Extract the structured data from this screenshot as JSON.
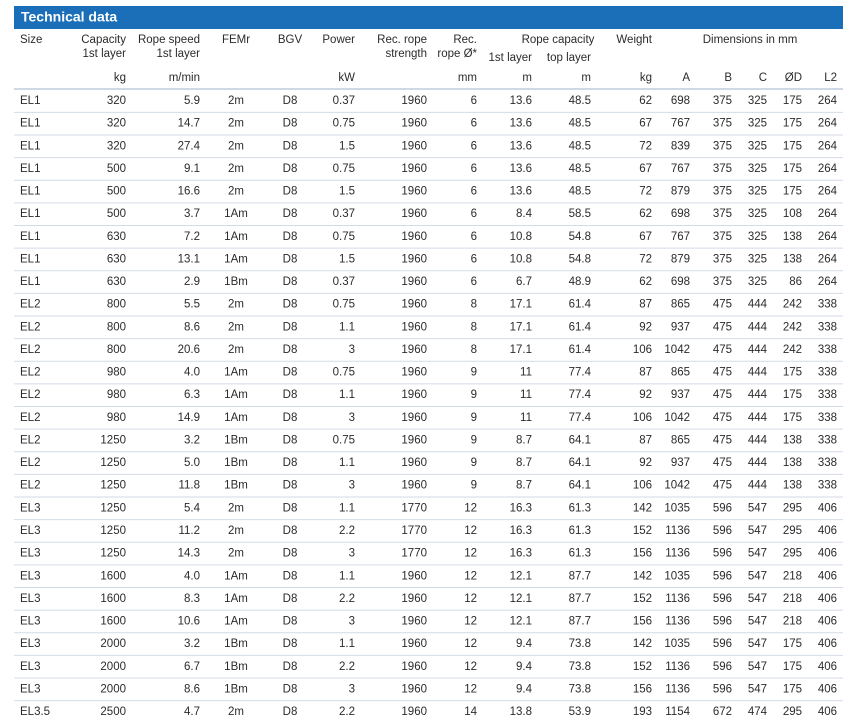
{
  "table": {
    "title": "Technical data",
    "group_headers": [
      "Rope capacity",
      "Dimensions in mm"
    ],
    "headers": [
      [
        "Size"
      ],
      [
        "Capacity",
        "1st layer"
      ],
      [
        "Rope speed",
        "1st layer"
      ],
      [
        "FEMr"
      ],
      [
        "BGV"
      ],
      [
        "Power"
      ],
      [
        "Rec. rope",
        "strength"
      ],
      [
        "Rec.",
        "rope Ø*"
      ],
      [
        "1st layer"
      ],
      [
        "top layer"
      ],
      [
        "Weight"
      ],
      [],
      [],
      [],
      [],
      []
    ],
    "units": [
      null,
      "kg",
      "m/min",
      null,
      null,
      "kW",
      null,
      "mm",
      "m",
      "m",
      "kg",
      "A",
      "B",
      "C",
      "ØD",
      "L2"
    ],
    "rows": [
      [
        "EL1",
        "320",
        "5.9",
        "2m",
        "D8",
        "0.37",
        "1960",
        "6",
        "13.6",
        "48.5",
        "62",
        "698",
        "375",
        "325",
        "175",
        "264"
      ],
      [
        "EL1",
        "320",
        "14.7",
        "2m",
        "D8",
        "0.75",
        "1960",
        "6",
        "13.6",
        "48.5",
        "67",
        "767",
        "375",
        "325",
        "175",
        "264"
      ],
      [
        "EL1",
        "320",
        "27.4",
        "2m",
        "D8",
        "1.5",
        "1960",
        "6",
        "13.6",
        "48.5",
        "72",
        "839",
        "375",
        "325",
        "175",
        "264"
      ],
      [
        "EL1",
        "500",
        "9.1",
        "2m",
        "D8",
        "0.75",
        "1960",
        "6",
        "13.6",
        "48.5",
        "67",
        "767",
        "375",
        "325",
        "175",
        "264"
      ],
      [
        "EL1",
        "500",
        "16.6",
        "2m",
        "D8",
        "1.5",
        "1960",
        "6",
        "13.6",
        "48.5",
        "72",
        "879",
        "375",
        "325",
        "175",
        "264"
      ],
      [
        "EL1",
        "500",
        "3.7",
        "1Am",
        "D8",
        "0.37",
        "1960",
        "6",
        "8.4",
        "58.5",
        "62",
        "698",
        "375",
        "325",
        "108",
        "264"
      ],
      [
        "EL1",
        "630",
        "7.2",
        "1Am",
        "D8",
        "0.75",
        "1960",
        "6",
        "10.8",
        "54.8",
        "67",
        "767",
        "375",
        "325",
        "138",
        "264"
      ],
      [
        "EL1",
        "630",
        "13.1",
        "1Am",
        "D8",
        "1.5",
        "1960",
        "6",
        "10.8",
        "54.8",
        "72",
        "879",
        "375",
        "325",
        "138",
        "264"
      ],
      [
        "EL1",
        "630",
        "2.9",
        "1Bm",
        "D8",
        "0.37",
        "1960",
        "6",
        "6.7",
        "48.9",
        "62",
        "698",
        "375",
        "325",
        "86",
        "264"
      ],
      [
        "EL2",
        "800",
        "5.5",
        "2m",
        "D8",
        "0.75",
        "1960",
        "8",
        "17.1",
        "61.4",
        "87",
        "865",
        "475",
        "444",
        "242",
        "338"
      ],
      [
        "EL2",
        "800",
        "8.6",
        "2m",
        "D8",
        "1.1",
        "1960",
        "8",
        "17.1",
        "61.4",
        "92",
        "937",
        "475",
        "444",
        "242",
        "338"
      ],
      [
        "EL2",
        "800",
        "20.6",
        "2m",
        "D8",
        "3",
        "1960",
        "8",
        "17.1",
        "61.4",
        "106",
        "1042",
        "475",
        "444",
        "242",
        "338"
      ],
      [
        "EL2",
        "980",
        "4.0",
        "1Am",
        "D8",
        "0.75",
        "1960",
        "9",
        "11",
        "77.4",
        "87",
        "865",
        "475",
        "444",
        "175",
        "338"
      ],
      [
        "EL2",
        "980",
        "6.3",
        "1Am",
        "D8",
        "1.1",
        "1960",
        "9",
        "11",
        "77.4",
        "92",
        "937",
        "475",
        "444",
        "175",
        "338"
      ],
      [
        "EL2",
        "980",
        "14.9",
        "1Am",
        "D8",
        "3",
        "1960",
        "9",
        "11",
        "77.4",
        "106",
        "1042",
        "475",
        "444",
        "175",
        "338"
      ],
      [
        "EL2",
        "1250",
        "3.2",
        "1Bm",
        "D8",
        "0.75",
        "1960",
        "9",
        "8.7",
        "64.1",
        "87",
        "865",
        "475",
        "444",
        "138",
        "338"
      ],
      [
        "EL2",
        "1250",
        "5.0",
        "1Bm",
        "D8",
        "1.1",
        "1960",
        "9",
        "8.7",
        "64.1",
        "92",
        "937",
        "475",
        "444",
        "138",
        "338"
      ],
      [
        "EL2",
        "1250",
        "11.8",
        "1Bm",
        "D8",
        "3",
        "1960",
        "9",
        "8.7",
        "64.1",
        "106",
        "1042",
        "475",
        "444",
        "138",
        "338"
      ],
      [
        "EL3",
        "1250",
        "5.4",
        "2m",
        "D8",
        "1.1",
        "1770",
        "12",
        "16.3",
        "61.3",
        "142",
        "1035",
        "596",
        "547",
        "295",
        "406"
      ],
      [
        "EL3",
        "1250",
        "11.2",
        "2m",
        "D8",
        "2.2",
        "1770",
        "12",
        "16.3",
        "61.3",
        "152",
        "1136",
        "596",
        "547",
        "295",
        "406"
      ],
      [
        "EL3",
        "1250",
        "14.3",
        "2m",
        "D8",
        "3",
        "1770",
        "12",
        "16.3",
        "61.3",
        "156",
        "1136",
        "596",
        "547",
        "295",
        "406"
      ],
      [
        "EL3",
        "1600",
        "4.0",
        "1Am",
        "D8",
        "1.1",
        "1960",
        "12",
        "12.1",
        "87.7",
        "142",
        "1035",
        "596",
        "547",
        "218",
        "406"
      ],
      [
        "EL3",
        "1600",
        "8.3",
        "1Am",
        "D8",
        "2.2",
        "1960",
        "12",
        "12.1",
        "87.7",
        "152",
        "1136",
        "596",
        "547",
        "218",
        "406"
      ],
      [
        "EL3",
        "1600",
        "10.6",
        "1Am",
        "D8",
        "3",
        "1960",
        "12",
        "12.1",
        "87.7",
        "156",
        "1136",
        "596",
        "547",
        "218",
        "406"
      ],
      [
        "EL3",
        "2000",
        "3.2",
        "1Bm",
        "D8",
        "1.1",
        "1960",
        "12",
        "9.4",
        "73.8",
        "142",
        "1035",
        "596",
        "547",
        "175",
        "406"
      ],
      [
        "EL3",
        "2000",
        "6.7",
        "1Bm",
        "D8",
        "2.2",
        "1960",
        "12",
        "9.4",
        "73.8",
        "152",
        "1136",
        "596",
        "547",
        "175",
        "406"
      ],
      [
        "EL3",
        "2000",
        "8.6",
        "1Bm",
        "D8",
        "3",
        "1960",
        "12",
        "9.4",
        "73.8",
        "156",
        "1136",
        "596",
        "547",
        "175",
        "406"
      ],
      [
        "EL3.5",
        "2500",
        "4.7",
        "2m",
        "D8",
        "2.2",
        "1960",
        "14",
        "13.8",
        "53.9",
        "193",
        "1154",
        "672",
        "474",
        "295",
        "406"
      ]
    ]
  }
}
